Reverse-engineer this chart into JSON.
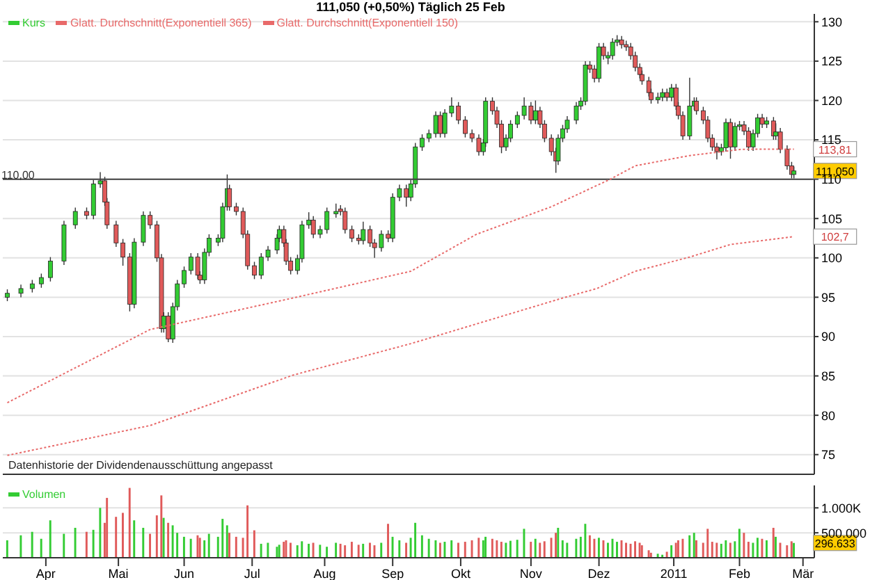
{
  "chart_data": [
    {
      "type": "candlestick",
      "title": "111,050 (+0,50%) Täglich 25 Feb",
      "legend": "top left",
      "grid": "y",
      "tick_labels": "y",
      "line_style": "dotted",
      "xlim": [
        "2010-03-13",
        "2011-03-06"
      ],
      "xticks": [
        {
          "value": "2010-04-01",
          "label": null
        },
        {
          "value": "2010-05-03",
          "label": null
        },
        {
          "value": "2010-06-01",
          "label": null
        },
        {
          "value": "2010-07-01",
          "label": null
        },
        {
          "value": "2010-08-02",
          "label": null
        },
        {
          "value": "2010-09-01",
          "label": null
        },
        {
          "value": "2010-10-01",
          "label": null
        },
        {
          "value": "2010-11-01",
          "label": null
        },
        {
          "value": "2010-12-01",
          "label": null
        },
        {
          "value": "2011-01-03",
          "label": null
        },
        {
          "value": "2011-02-01",
          "label": null
        },
        {
          "value": "2011-03-01",
          "label": null
        }
      ],
      "ylim": [
        72.5,
        131
      ],
      "yticks": [
        75,
        80,
        85,
        90,
        95,
        100,
        105,
        110,
        115,
        120,
        125,
        130
      ],
      "ref_lines": [
        {
          "axis": "y",
          "value": 110,
          "label": "110,00",
          "color": "#404040"
        }
      ],
      "annotations": [
        {
          "text": "111,050",
          "x": "2011-02-25",
          "y": 111.05
        },
        {
          "text": "113,81",
          "x": "2011-02-25",
          "y": 113.81
        },
        {
          "text": "102,7",
          "x": "2011-02-25",
          "y": 102.7
        },
        "Datenhistorie der Dividendenausschüttung angepasst"
      ],
      "x": [
        "2010-03-15",
        "2010-03-21",
        "2010-03-26",
        "2010-03-30",
        "2010-04-03",
        "2010-04-09",
        "2010-04-14",
        "2010-04-19",
        "2010-04-22",
        "2010-04-25",
        "2010-04-27",
        "2010-04-28",
        "2010-05-02",
        "2010-05-05",
        "2010-05-08",
        "2010-05-10",
        "2010-05-14",
        "2010-05-17",
        "2010-05-20",
        "2010-05-22",
        "2010-05-23",
        "2010-05-25",
        "2010-05-27",
        "2010-05-29",
        "2010-06-01",
        "2010-06-04",
        "2010-06-07",
        "2010-06-08",
        "2010-06-10",
        "2010-06-12",
        "2010-06-16",
        "2010-06-18",
        "2010-06-20",
        "2010-06-21",
        "2010-06-24",
        "2010-06-27",
        "2010-06-29",
        "2010-07-02",
        "2010-07-05",
        "2010-07-08",
        "2010-07-12",
        "2010-07-13",
        "2010-07-15",
        "2010-07-16",
        "2010-07-18",
        "2010-07-21",
        "2010-07-23",
        "2010-07-26",
        "2010-07-28",
        "2010-07-31",
        "2010-08-03",
        "2010-08-07",
        "2010-08-09",
        "2010-08-11",
        "2010-08-14",
        "2010-08-17",
        "2010-08-19",
        "2010-08-22",
        "2010-08-24",
        "2010-08-27",
        "2010-08-30",
        "2010-09-01",
        "2010-09-04",
        "2010-09-07",
        "2010-09-09",
        "2010-09-11",
        "2010-09-14",
        "2010-09-17",
        "2010-09-20",
        "2010-09-22",
        "2010-09-24",
        "2010-09-27",
        "2010-09-30",
        "2010-10-03",
        "2010-10-06",
        "2010-10-09",
        "2010-10-11",
        "2010-10-12",
        "2010-10-15",
        "2010-10-17",
        "2010-10-19",
        "2010-10-21",
        "2010-10-23",
        "2010-10-26",
        "2010-10-29",
        "2010-11-01",
        "2010-11-03",
        "2010-11-05",
        "2010-11-07",
        "2010-11-10",
        "2010-11-12",
        "2010-11-13",
        "2010-11-15",
        "2010-11-17",
        "2010-11-21",
        "2010-11-23",
        "2010-11-25",
        "2010-11-27",
        "2010-11-29",
        "2010-12-01",
        "2010-12-03",
        "2010-12-05",
        "2010-12-07",
        "2010-12-09",
        "2010-12-11",
        "2010-12-13",
        "2010-12-15",
        "2010-12-17",
        "2010-12-19",
        "2010-12-20",
        "2010-12-23",
        "2010-12-24",
        "2010-12-27",
        "2010-12-29",
        "2010-12-31",
        "2011-01-02",
        "2011-01-04",
        "2011-01-05",
        "2011-01-07",
        "2011-01-10",
        "2011-01-12",
        "2011-01-13",
        "2011-01-16",
        "2011-01-18",
        "2011-01-20",
        "2011-01-22",
        "2011-01-24",
        "2011-01-26",
        "2011-01-28",
        "2011-01-30",
        "2011-02-01",
        "2011-02-03",
        "2011-02-05",
        "2011-02-07",
        "2011-02-09",
        "2011-02-11",
        "2011-02-13",
        "2011-02-16",
        "2011-02-17",
        "2011-02-19",
        "2011-02-22",
        "2011-02-24",
        "2011-02-25"
      ],
      "series": [
        {
          "name": "Kurs",
          "color": "#33cc33",
          "ohlc": [
            [
              95.0,
              96.0,
              94.5,
              95.5
            ],
            [
              95.5,
              96.6,
              95.0,
              96.1
            ],
            [
              96.1,
              97.2,
              95.6,
              96.7
            ],
            [
              96.7,
              98.0,
              96.2,
              97.5
            ],
            [
              97.5,
              100.1,
              97.0,
              99.6
            ],
            [
              99.6,
              104.7,
              99.1,
              104.2
            ],
            [
              104.2,
              106.4,
              103.7,
              105.9
            ],
            [
              105.9,
              106.4,
              104.9,
              105.4
            ],
            [
              105.4,
              109.9,
              104.9,
              109.4
            ],
            [
              109.4,
              110.9,
              108.9,
              109.8
            ],
            [
              109.8,
              110.3,
              106.6,
              107.1
            ],
            [
              107.1,
              107.6,
              103.7,
              104.2
            ],
            [
              104.2,
              104.7,
              101.4,
              101.9
            ],
            [
              101.9,
              102.4,
              99.0,
              100.1
            ],
            [
              100.1,
              100.6,
              93.2,
              94.1
            ],
            [
              94.1,
              102.5,
              93.6,
              102.0
            ],
            [
              102.0,
              105.9,
              101.5,
              105.4
            ],
            [
              105.4,
              105.9,
              103.7,
              104.2
            ],
            [
              104.2,
              104.7,
              99.5,
              100.0
            ],
            [
              100.0,
              100.5,
              90.5,
              91.0
            ],
            [
              91.0,
              93.1,
              90.5,
              92.6
            ],
            [
              92.6,
              93.1,
              89.3,
              89.7
            ],
            [
              89.7,
              94.3,
              89.2,
              93.8
            ],
            [
              93.8,
              97.2,
              93.3,
              96.7
            ],
            [
              96.7,
              98.9,
              96.2,
              98.4
            ],
            [
              98.4,
              100.6,
              97.9,
              100.1
            ],
            [
              100.1,
              100.6,
              97.3,
              97.8
            ],
            [
              97.8,
              98.3,
              96.7,
              97.2
            ],
            [
              97.2,
              101.2,
              96.7,
              100.7
            ],
            [
              100.7,
              103.0,
              100.2,
              102.5
            ],
            [
              102.0,
              103.0,
              101.5,
              102.5
            ],
            [
              102.5,
              107.0,
              102.0,
              106.5
            ],
            [
              106.5,
              110.6,
              106.0,
              108.8
            ],
            [
              108.8,
              109.3,
              106.0,
              106.5
            ],
            [
              106.5,
              107.0,
              105.4,
              105.9
            ],
            [
              105.9,
              106.4,
              102.5,
              103.0
            ],
            [
              103.0,
              103.5,
              98.5,
              99.0
            ],
            [
              99.0,
              99.5,
              97.3,
              97.8
            ],
            [
              97.8,
              100.6,
              97.3,
              100.1
            ],
            [
              100.1,
              101.5,
              99.6,
              101.0
            ],
            [
              101.0,
              103.0,
              100.5,
              102.5
            ],
            [
              102.5,
              104.1,
              102.0,
              103.6
            ],
            [
              103.6,
              104.1,
              101.4,
              101.9
            ],
            [
              101.9,
              102.4,
              99.1,
              99.6
            ],
            [
              99.6,
              100.1,
              97.9,
              98.4
            ],
            [
              98.4,
              100.4,
              97.9,
              99.9
            ],
            [
              99.9,
              104.7,
              99.4,
              104.2
            ],
            [
              104.2,
              105.8,
              103.7,
              104.8
            ],
            [
              104.8,
              105.3,
              102.5,
              103.0
            ],
            [
              103.0,
              104.1,
              102.5,
              103.6
            ],
            [
              103.6,
              106.4,
              103.1,
              105.9
            ],
            [
              105.6,
              106.9,
              105.1,
              105.9
            ],
            [
              106.2,
              106.7,
              105.4,
              105.9
            ],
            [
              105.9,
              106.4,
              103.1,
              103.6
            ],
            [
              103.6,
              104.1,
              102.0,
              102.5
            ],
            [
              102.5,
              103.0,
              101.7,
              102.2
            ],
            [
              102.2,
              104.6,
              101.7,
              103.6
            ],
            [
              103.6,
              104.1,
              101.4,
              101.9
            ],
            [
              101.9,
              102.4,
              100.0,
              101.3
            ],
            [
              101.3,
              103.5,
              100.8,
              103.0
            ],
            [
              103.0,
              103.5,
              102.0,
              102.5
            ],
            [
              102.5,
              108.2,
              102.0,
              107.7
            ],
            [
              107.7,
              109.3,
              107.2,
              108.8
            ],
            [
              108.8,
              109.3,
              106.5,
              107.7
            ],
            [
              107.7,
              109.9,
              107.2,
              109.4
            ],
            [
              109.4,
              114.6,
              108.9,
              114.1
            ],
            [
              114.1,
              115.7,
              113.6,
              115.2
            ],
            [
              115.2,
              116.3,
              114.7,
              115.8
            ],
            [
              115.8,
              118.6,
              115.3,
              118.1
            ],
            [
              118.1,
              118.6,
              115.3,
              115.8
            ],
            [
              115.8,
              118.9,
              115.3,
              118.4
            ],
            [
              118.4,
              120.4,
              117.9,
              119.3
            ],
            [
              119.3,
              119.8,
              117.0,
              117.5
            ],
            [
              117.5,
              118.0,
              115.3,
              115.8
            ],
            [
              115.8,
              116.3,
              114.7,
              115.2
            ],
            [
              115.2,
              115.7,
              113.0,
              113.5
            ],
            [
              113.5,
              115.1,
              113.0,
              114.6
            ],
            [
              114.6,
              120.4,
              114.1,
              119.9
            ],
            [
              119.9,
              120.4,
              118.2,
              118.7
            ],
            [
              118.7,
              119.2,
              116.5,
              117.0
            ],
            [
              117.0,
              117.5,
              113.3,
              114.1
            ],
            [
              114.1,
              115.7,
              113.6,
              115.2
            ],
            [
              115.2,
              117.5,
              114.7,
              117.0
            ],
            [
              117.0,
              118.6,
              116.5,
              118.1
            ],
            [
              118.1,
              120.4,
              117.6,
              119.3
            ],
            [
              119.3,
              119.8,
              117.0,
              117.5
            ],
            [
              117.5,
              120.0,
              117.0,
              118.7
            ],
            [
              118.7,
              119.2,
              116.5,
              117.0
            ],
            [
              117.0,
              117.5,
              114.7,
              115.2
            ],
            [
              115.2,
              115.7,
              113.0,
              113.5
            ],
            [
              113.5,
              114.0,
              110.8,
              112.3
            ],
            [
              112.3,
              115.7,
              111.8,
              115.2
            ],
            [
              115.2,
              116.9,
              114.7,
              116.4
            ],
            [
              116.4,
              118.0,
              115.9,
              117.5
            ],
            [
              117.5,
              119.8,
              117.0,
              119.3
            ],
            [
              119.3,
              120.4,
              118.8,
              119.9
            ],
            [
              119.9,
              125.0,
              119.4,
              124.5
            ],
            [
              124.5,
              125.0,
              123.5,
              124.0
            ],
            [
              124.0,
              124.5,
              122.3,
              122.8
            ],
            [
              122.8,
              127.3,
              122.3,
              126.8
            ],
            [
              126.8,
              127.3,
              125.2,
              125.7
            ],
            [
              125.4,
              126.2,
              124.6,
              125.7
            ],
            [
              125.7,
              127.9,
              125.2,
              127.4
            ],
            [
              127.4,
              128.3,
              126.9,
              127.7
            ],
            [
              127.7,
              128.2,
              126.6,
              127.1
            ],
            [
              127.1,
              127.6,
              126.3,
              126.8
            ],
            [
              126.8,
              127.3,
              125.2,
              125.7
            ],
            [
              125.7,
              126.2,
              123.7,
              124.2
            ],
            [
              124.2,
              124.7,
              122.8,
              123.3
            ],
            [
              123.3,
              123.8,
              122.0,
              122.5
            ],
            [
              122.5,
              123.0,
              120.5,
              121.0
            ],
            [
              121.0,
              121.5,
              119.6,
              120.1
            ],
            [
              120.1,
              121.0,
              119.6,
              120.4
            ],
            [
              120.4,
              121.5,
              119.9,
              121.0
            ],
            [
              121.0,
              121.5,
              119.9,
              120.4
            ],
            [
              120.4,
              122.1,
              119.9,
              121.6
            ],
            [
              121.6,
              122.1,
              118.8,
              119.3
            ],
            [
              119.3,
              119.8,
              117.6,
              118.1
            ],
            [
              118.1,
              118.6,
              115.0,
              115.5
            ],
            [
              115.5,
              122.9,
              115.0,
              119.3
            ],
            [
              119.3,
              120.4,
              118.8,
              119.9
            ],
            [
              119.9,
              120.4,
              118.2,
              118.7
            ],
            [
              118.7,
              119.2,
              117.0,
              117.5
            ],
            [
              117.5,
              118.0,
              114.7,
              115.2
            ],
            [
              115.2,
              115.7,
              113.6,
              114.1
            ],
            [
              114.1,
              114.6,
              112.5,
              113.5
            ],
            [
              113.5,
              114.5,
              113.0,
              114.0
            ],
            [
              114.0,
              117.7,
              113.5,
              117.2
            ],
            [
              117.2,
              117.7,
              112.6,
              114.1
            ],
            [
              114.1,
              117.2,
              113.6,
              116.7
            ],
            [
              116.7,
              117.4,
              116.2,
              116.9
            ],
            [
              116.9,
              117.4,
              115.6,
              116.1
            ],
            [
              116.1,
              116.6,
              113.6,
              114.1
            ],
            [
              114.1,
              116.3,
              113.6,
              115.8
            ],
            [
              115.8,
              118.3,
              115.3,
              117.8
            ],
            [
              117.8,
              118.3,
              116.5,
              117.0
            ],
            [
              117.0,
              117.9,
              116.5,
              117.4
            ],
            [
              117.4,
              117.9,
              115.0,
              115.5
            ],
            [
              115.5,
              117.1,
              115.0,
              116.0
            ],
            [
              116.0,
              116.5,
              113.3,
              113.8
            ],
            [
              113.8,
              114.3,
              111.2,
              111.7
            ],
            [
              111.7,
              112.2,
              110.1,
              110.6
            ],
            [
              110.6,
              111.6,
              110.1,
              111.05
            ]
          ],
          "colors": [
            "#33cc33",
            "#33cc33",
            "#33cc33",
            "#33cc33",
            "#33cc33",
            "#33cc33",
            "#33cc33",
            "#e05a5a",
            "#33cc33",
            "#33cc33",
            "#e05a5a",
            "#e05a5a",
            "#e05a5a",
            "#e05a5a",
            "#e05a5a",
            "#33cc33",
            "#33cc33",
            "#e05a5a",
            "#e05a5a",
            "#e05a5a",
            "#33cc33",
            "#e05a5a",
            "#33cc33",
            "#33cc33",
            "#33cc33",
            "#33cc33",
            "#e05a5a",
            "#e05a5a",
            "#33cc33",
            "#33cc33",
            "#33cc33",
            "#33cc33",
            "#33cc33",
            "#e05a5a",
            "#e05a5a",
            "#e05a5a",
            "#e05a5a",
            "#e05a5a",
            "#33cc33",
            "#33cc33",
            "#33cc33",
            "#33cc33",
            "#e05a5a",
            "#e05a5a",
            "#e05a5a",
            "#33cc33",
            "#33cc33",
            "#33cc33",
            "#e05a5a",
            "#33cc33",
            "#33cc33",
            "#33cc33",
            "#e05a5a",
            "#e05a5a",
            "#e05a5a",
            "#e05a5a",
            "#33cc33",
            "#e05a5a",
            "#e05a5a",
            "#33cc33",
            "#e05a5a",
            "#33cc33",
            "#33cc33",
            "#e05a5a",
            "#33cc33",
            "#33cc33",
            "#33cc33",
            "#33cc33",
            "#33cc33",
            "#e05a5a",
            "#33cc33",
            "#33cc33",
            "#e05a5a",
            "#e05a5a",
            "#e05a5a",
            "#e05a5a",
            "#33cc33",
            "#33cc33",
            "#e05a5a",
            "#e05a5a",
            "#e05a5a",
            "#33cc33",
            "#33cc33",
            "#33cc33",
            "#33cc33",
            "#e05a5a",
            "#33cc33",
            "#e05a5a",
            "#e05a5a",
            "#e05a5a",
            "#e05a5a",
            "#33cc33",
            "#33cc33",
            "#33cc33",
            "#33cc33",
            "#33cc33",
            "#33cc33",
            "#e05a5a",
            "#e05a5a",
            "#33cc33",
            "#e05a5a",
            "#33cc33",
            "#33cc33",
            "#33cc33",
            "#e05a5a",
            "#e05a5a",
            "#e05a5a",
            "#e05a5a",
            "#e05a5a",
            "#e05a5a",
            "#e05a5a",
            "#e05a5a",
            "#33cc33",
            "#33cc33",
            "#e05a5a",
            "#33cc33",
            "#e05a5a",
            "#e05a5a",
            "#e05a5a",
            "#33cc33",
            "#33cc33",
            "#e05a5a",
            "#e05a5a",
            "#e05a5a",
            "#e05a5a",
            "#e05a5a",
            "#33cc33",
            "#33cc33",
            "#e05a5a",
            "#33cc33",
            "#33cc33",
            "#e05a5a",
            "#e05a5a",
            "#33cc33",
            "#33cc33",
            "#e05a5a",
            "#33cc33",
            "#e05a5a",
            "#33cc33",
            "#e05a5a",
            "#e05a5a",
            "#e05a5a",
            "#33cc33"
          ]
        },
        {
          "name": "Glatt. Durchschnitt(Exponentiell 365)",
          "type": "line",
          "color": "#e86a6a",
          "x": [
            "2010-03-15",
            "2010-05-17",
            "2010-07-19",
            "2010-09-09",
            "2010-11-15",
            "2010-11-30",
            "2010-12-17",
            "2011-01-10",
            "2011-01-28",
            "2011-02-25"
          ],
          "values": [
            74.9,
            78.7,
            85.1,
            89.1,
            94.9,
            96.1,
            98.3,
            100.1,
            101.7,
            102.7
          ]
        },
        {
          "name": "Glatt. Durchschnitt(Exponentiell 150)",
          "type": "line",
          "color": "#e86a6a",
          "x": [
            "2010-03-15",
            "2010-05-17",
            "2010-07-19",
            "2010-09-09",
            "2010-10-08",
            "2010-11-10",
            "2010-12-06",
            "2010-12-17",
            "2011-01-10",
            "2011-02-02",
            "2011-02-25"
          ],
          "values": [
            81.6,
            90.9,
            94.9,
            98.3,
            103.0,
            106.5,
            110.0,
            111.7,
            113.0,
            113.8,
            113.81
          ]
        }
      ]
    },
    {
      "type": "bar",
      "legend": "top left",
      "grid": "y",
      "xlim": [
        "2010-03-13",
        "2011-03-06"
      ],
      "xticks": [
        {
          "value": "2010-04-01",
          "label": "Apr"
        },
        {
          "value": "2010-05-03",
          "label": "Mai"
        },
        {
          "value": "2010-06-01",
          "label": "Jun"
        },
        {
          "value": "2010-07-01",
          "label": "Jul"
        },
        {
          "value": "2010-08-02",
          "label": "Aug"
        },
        {
          "value": "2010-09-01",
          "label": "Sep"
        },
        {
          "value": "2010-10-01",
          "label": "Okt"
        },
        {
          "value": "2010-11-01",
          "label": "Nov"
        },
        {
          "value": "2010-12-01",
          "label": "Dez"
        },
        {
          "value": "2011-01-03",
          "label": "2011"
        },
        {
          "value": "2011-02-01",
          "label": "Feb"
        },
        {
          "value": "2011-03-01",
          "label": "Mär"
        }
      ],
      "ylim": [
        0,
        1450000
      ],
      "yticks": [
        {
          "value": 500000,
          "label": "500.000"
        },
        {
          "value": 1000000,
          "label": "1.000K"
        }
      ],
      "annotations": [
        {
          "text": "296.633",
          "x": "2011-02-25",
          "y": 296633
        }
      ],
      "series": [
        {
          "name": "Volumen",
          "color": "#33cc33",
          "x": [
            "2010-03-15",
            "2010-03-21",
            "2010-03-26",
            "2010-03-30",
            "2010-04-03",
            "2010-04-09",
            "2010-04-14",
            "2010-04-19",
            "2010-04-22",
            "2010-04-25",
            "2010-04-27",
            "2010-04-28",
            "2010-05-02",
            "2010-05-05",
            "2010-05-08",
            "2010-05-10",
            "2010-05-14",
            "2010-05-17",
            "2010-05-20",
            "2010-05-22",
            "2010-05-23",
            "2010-05-25",
            "2010-05-27",
            "2010-05-29",
            "2010-06-01",
            "2010-06-04",
            "2010-06-07",
            "2010-06-08",
            "2010-06-10",
            "2010-06-12",
            "2010-06-16",
            "2010-06-18",
            "2010-06-20",
            "2010-06-21",
            "2010-06-24",
            "2010-06-27",
            "2010-06-29",
            "2010-07-02",
            "2010-07-05",
            "2010-07-08",
            "2010-07-12",
            "2010-07-13",
            "2010-07-15",
            "2010-07-16",
            "2010-07-18",
            "2010-07-21",
            "2010-07-23",
            "2010-07-26",
            "2010-07-28",
            "2010-07-31",
            "2010-08-03",
            "2010-08-07",
            "2010-08-09",
            "2010-08-11",
            "2010-08-14",
            "2010-08-17",
            "2010-08-19",
            "2010-08-22",
            "2010-08-24",
            "2010-08-27",
            "2010-08-30",
            "2010-09-01",
            "2010-09-04",
            "2010-09-07",
            "2010-09-09",
            "2010-09-11",
            "2010-09-14",
            "2010-09-17",
            "2010-09-20",
            "2010-09-22",
            "2010-09-24",
            "2010-09-27",
            "2010-09-30",
            "2010-10-03",
            "2010-10-06",
            "2010-10-09",
            "2010-10-11",
            "2010-10-12",
            "2010-10-15",
            "2010-10-17",
            "2010-10-19",
            "2010-10-21",
            "2010-10-23",
            "2010-10-26",
            "2010-10-29",
            "2010-11-01",
            "2010-11-03",
            "2010-11-05",
            "2010-11-07",
            "2010-11-10",
            "2010-11-12",
            "2010-11-13",
            "2010-11-15",
            "2010-11-17",
            "2010-11-21",
            "2010-11-23",
            "2010-11-25",
            "2010-11-27",
            "2010-11-29",
            "2010-12-01",
            "2010-12-03",
            "2010-12-05",
            "2010-12-07",
            "2010-12-09",
            "2010-12-11",
            "2010-12-13",
            "2010-12-15",
            "2010-12-17",
            "2010-12-19",
            "2010-12-20",
            "2010-12-23",
            "2010-12-24",
            "2010-12-27",
            "2010-12-29",
            "2010-12-31",
            "2011-01-02",
            "2011-01-04",
            "2011-01-05",
            "2011-01-07",
            "2011-01-10",
            "2011-01-12",
            "2011-01-13",
            "2011-01-16",
            "2011-01-18",
            "2011-01-20",
            "2011-01-22",
            "2011-01-24",
            "2011-01-26",
            "2011-01-28",
            "2011-01-30",
            "2011-02-01",
            "2011-02-03",
            "2011-02-05",
            "2011-02-07",
            "2011-02-09",
            "2011-02-11",
            "2011-02-13",
            "2011-02-16",
            "2011-02-17",
            "2011-02-19",
            "2011-02-22",
            "2011-02-24",
            "2011-02-25"
          ],
          "values": [
            350000,
            450000,
            520000,
            380000,
            750000,
            480000,
            600000,
            520000,
            560000,
            1000000,
            700000,
            1200000,
            820000,
            900000,
            1400000,
            750000,
            600000,
            480000,
            850000,
            1250000,
            800000,
            700000,
            650000,
            500000,
            420000,
            380000,
            450000,
            400000,
            350000,
            480000,
            420000,
            780000,
            650000,
            500000,
            420000,
            400000,
            1050000,
            550000,
            280000,
            300000,
            220000,
            260000,
            320000,
            350000,
            300000,
            250000,
            330000,
            280000,
            300000,
            260000,
            220000,
            300000,
            280000,
            250000,
            320000,
            260000,
            280000,
            300000,
            250000,
            300000,
            680000,
            420000,
            350000,
            300000,
            400000,
            700000,
            450000,
            380000,
            350000,
            300000,
            320000,
            350000,
            300000,
            320000,
            350000,
            400000,
            350000,
            420000,
            380000,
            350000,
            320000,
            300000,
            340000,
            360000,
            580000,
            320000,
            380000,
            300000,
            330000,
            400000,
            500000,
            600000,
            350000,
            300000,
            380000,
            420000,
            680000,
            450000,
            380000,
            400000,
            350000,
            300000,
            380000,
            320000,
            350000,
            300000,
            280000,
            330000,
            300000,
            250000,
            150000,
            100000,
            80000,
            60000,
            120000,
            250000,
            300000,
            350000,
            380000,
            450000,
            500000,
            350000,
            300000,
            580000,
            320000,
            300000,
            280000,
            350000,
            300000,
            330000,
            580000,
            500000,
            320000,
            300000,
            400000,
            380000,
            350000,
            600000,
            420000,
            300000,
            250000,
            330000,
            296633
          ],
          "colors": [
            "#33cc33",
            "#33cc33",
            "#33cc33",
            "#33cc33",
            "#33cc33",
            "#33cc33",
            "#33cc33",
            "#e05a5a",
            "#33cc33",
            "#33cc33",
            "#e05a5a",
            "#e05a5a",
            "#e05a5a",
            "#e05a5a",
            "#e05a5a",
            "#33cc33",
            "#33cc33",
            "#e05a5a",
            "#e05a5a",
            "#e05a5a",
            "#33cc33",
            "#e05a5a",
            "#33cc33",
            "#33cc33",
            "#33cc33",
            "#33cc33",
            "#e05a5a",
            "#e05a5a",
            "#33cc33",
            "#33cc33",
            "#33cc33",
            "#33cc33",
            "#33cc33",
            "#e05a5a",
            "#e05a5a",
            "#e05a5a",
            "#e05a5a",
            "#e05a5a",
            "#33cc33",
            "#33cc33",
            "#33cc33",
            "#33cc33",
            "#e05a5a",
            "#e05a5a",
            "#e05a5a",
            "#33cc33",
            "#33cc33",
            "#33cc33",
            "#e05a5a",
            "#33cc33",
            "#33cc33",
            "#33cc33",
            "#e05a5a",
            "#e05a5a",
            "#e05a5a",
            "#e05a5a",
            "#33cc33",
            "#e05a5a",
            "#e05a5a",
            "#33cc33",
            "#e05a5a",
            "#33cc33",
            "#33cc33",
            "#e05a5a",
            "#33cc33",
            "#33cc33",
            "#33cc33",
            "#33cc33",
            "#33cc33",
            "#e05a5a",
            "#33cc33",
            "#33cc33",
            "#e05a5a",
            "#e05a5a",
            "#e05a5a",
            "#e05a5a",
            "#33cc33",
            "#33cc33",
            "#e05a5a",
            "#e05a5a",
            "#e05a5a",
            "#33cc33",
            "#33cc33",
            "#33cc33",
            "#33cc33",
            "#e05a5a",
            "#33cc33",
            "#e05a5a",
            "#e05a5a",
            "#e05a5a",
            "#e05a5a",
            "#33cc33",
            "#33cc33",
            "#33cc33",
            "#33cc33",
            "#33cc33",
            "#33cc33",
            "#e05a5a",
            "#e05a5a",
            "#33cc33",
            "#e05a5a",
            "#33cc33",
            "#33cc33",
            "#33cc33",
            "#e05a5a",
            "#e05a5a",
            "#e05a5a",
            "#e05a5a",
            "#e05a5a",
            "#e05a5a",
            "#e05a5a",
            "#e05a5a",
            "#33cc33",
            "#33cc33",
            "#e05a5a",
            "#33cc33",
            "#e05a5a",
            "#e05a5a",
            "#e05a5a",
            "#33cc33",
            "#33cc33",
            "#e05a5a",
            "#e05a5a",
            "#e05a5a",
            "#e05a5a",
            "#e05a5a",
            "#33cc33",
            "#33cc33",
            "#e05a5a",
            "#33cc33",
            "#33cc33",
            "#e05a5a",
            "#e05a5a",
            "#33cc33",
            "#33cc33",
            "#e05a5a",
            "#33cc33",
            "#e05a5a",
            "#33cc33",
            "#e05a5a",
            "#e05a5a",
            "#e05a5a",
            "#33cc33"
          ]
        }
      ]
    }
  ]
}
